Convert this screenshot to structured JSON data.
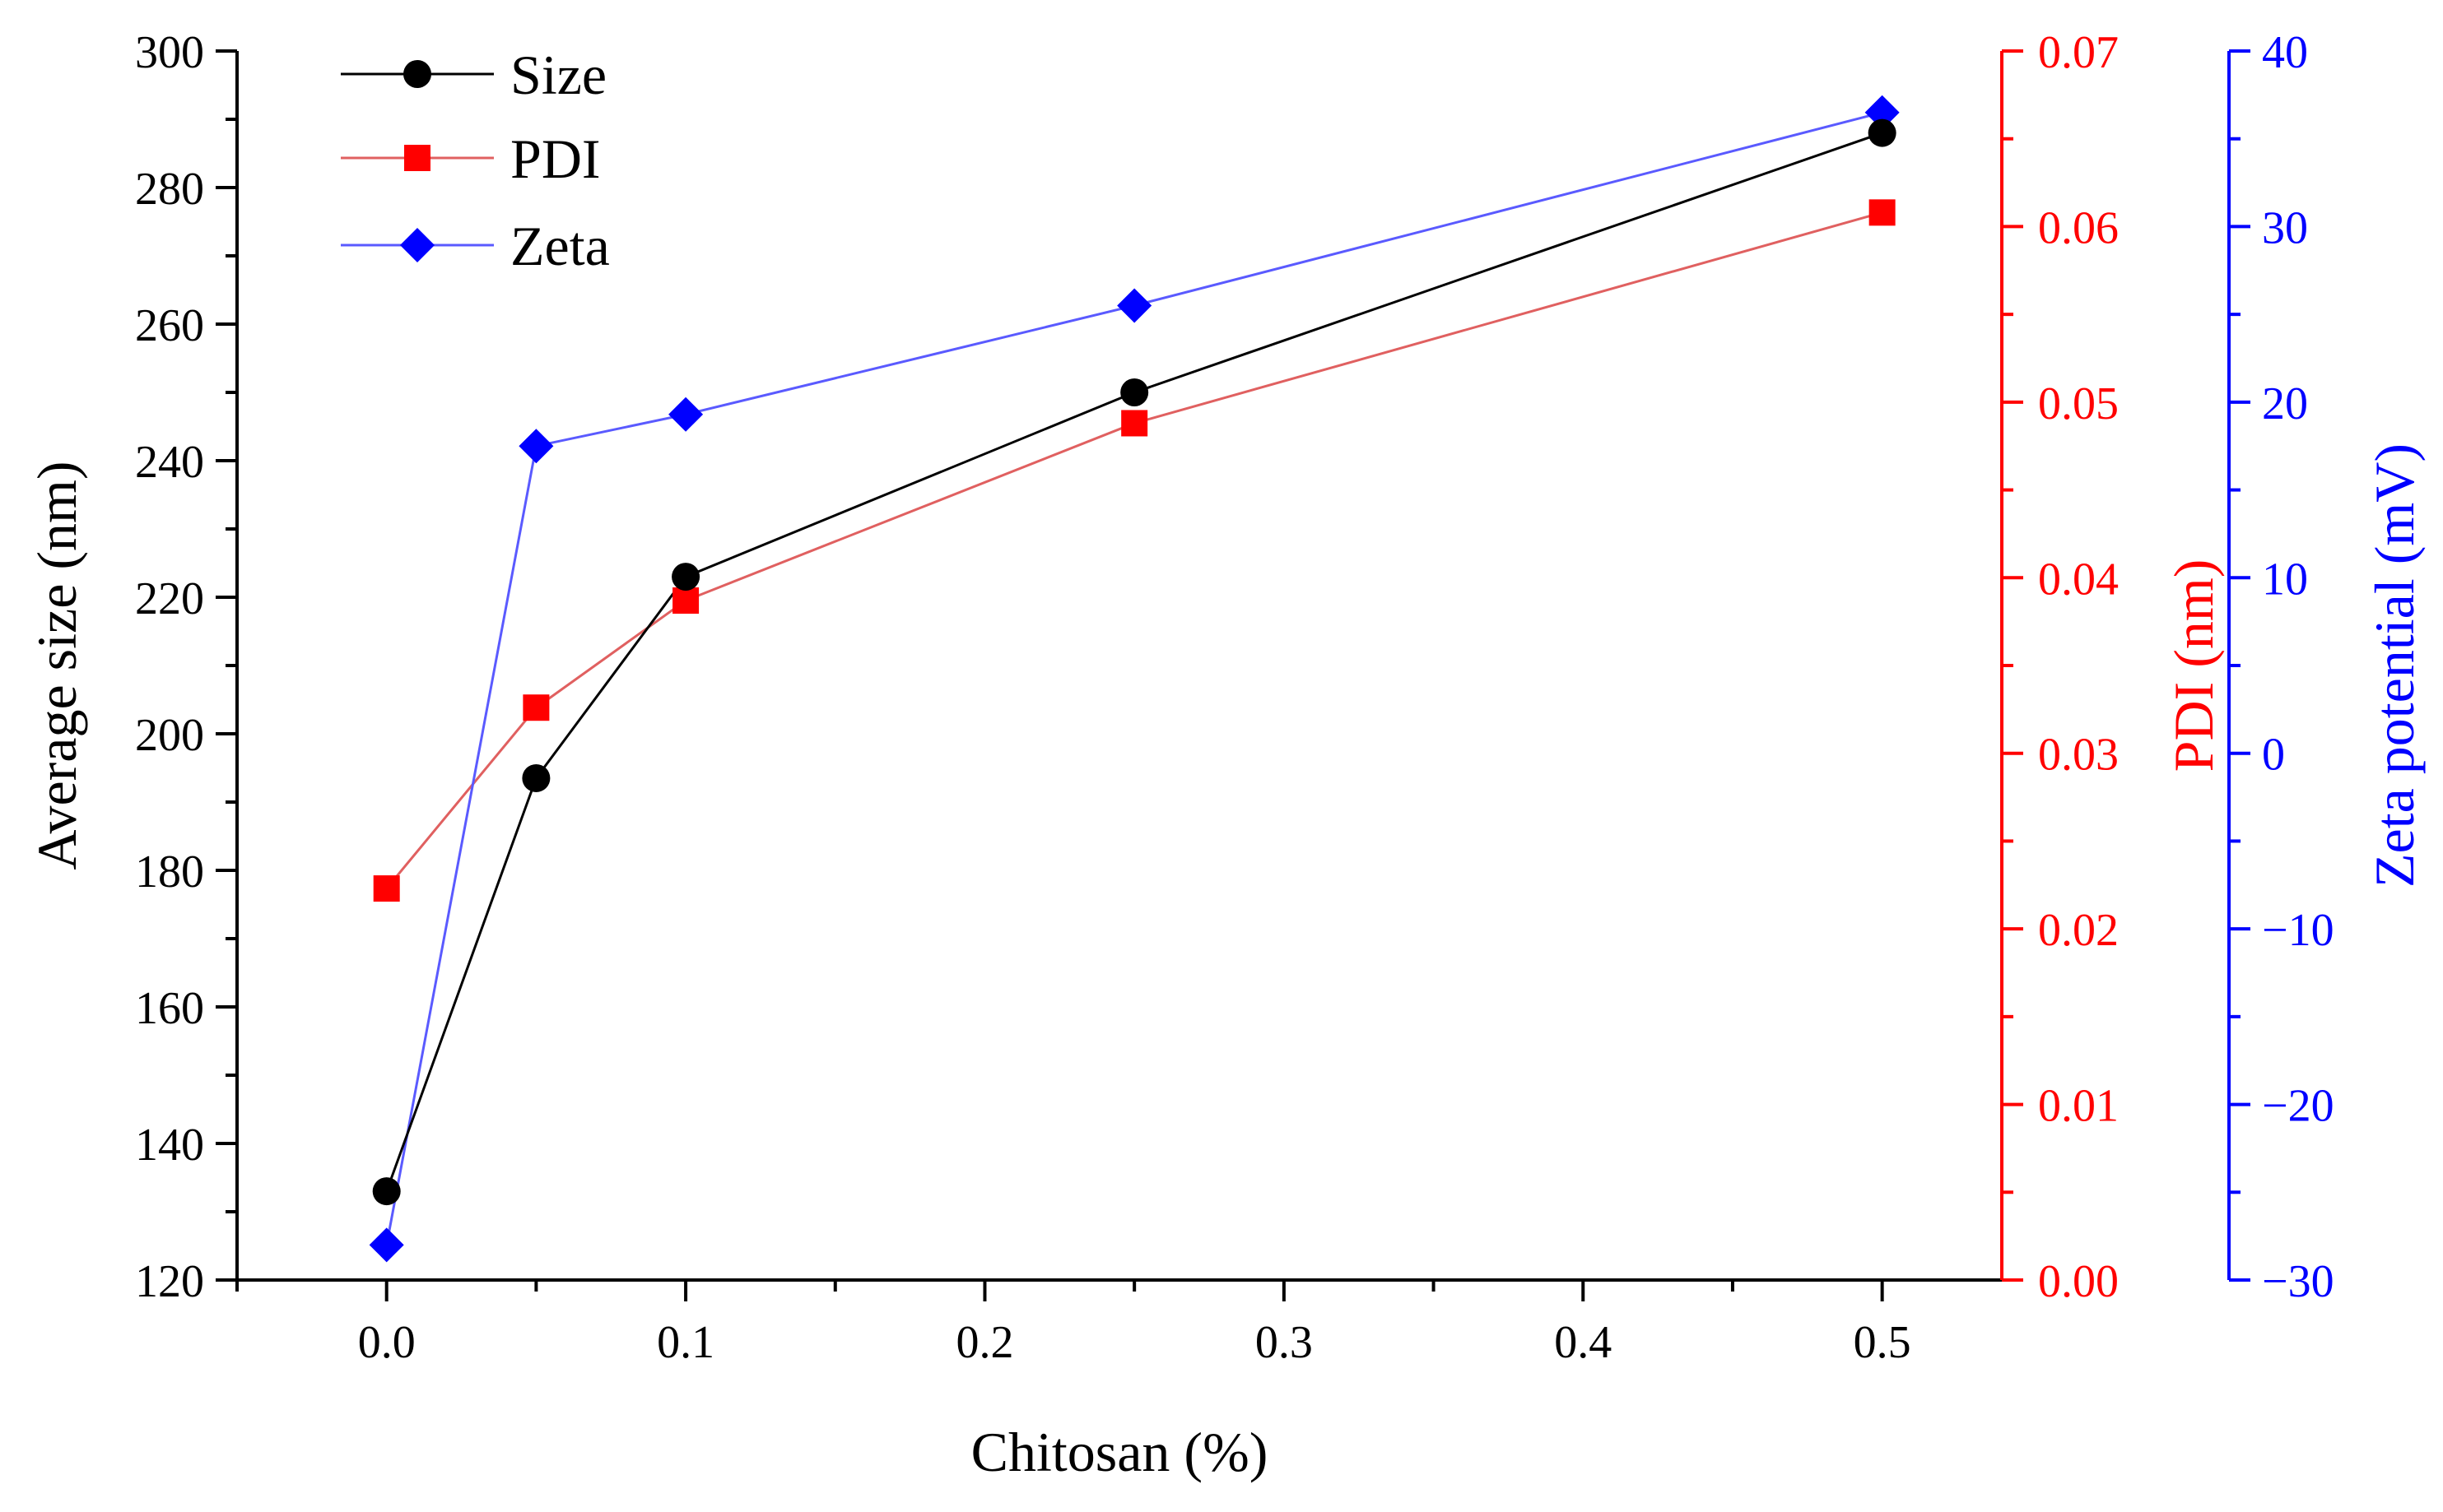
{
  "chart_data": {
    "type": "line",
    "x": [
      0.0,
      0.05,
      0.1,
      0.25,
      0.5
    ],
    "xlabel": "Chitosan (%)",
    "xlim": [
      -0.05,
      0.54
    ],
    "x_ticks": [
      0.0,
      0.1,
      0.2,
      0.3,
      0.4,
      0.5
    ],
    "x_tick_labels": [
      "0.0",
      "0.1",
      "0.2",
      "0.3",
      "0.4",
      "0.5"
    ],
    "axes": {
      "left": {
        "label": "Average size (nm)",
        "color": "#000000",
        "ylim": [
          120,
          300
        ],
        "ticks": [
          120,
          140,
          160,
          180,
          200,
          220,
          240,
          260,
          280,
          300
        ],
        "tick_labels": [
          "120",
          "140",
          "160",
          "180",
          "200",
          "220",
          "240",
          "260",
          "280",
          "300"
        ]
      },
      "right1": {
        "label": "PDI (nm)",
        "color": "#ff0000",
        "ylim": [
          0.0,
          0.07
        ],
        "ticks": [
          0.0,
          0.01,
          0.02,
          0.03,
          0.04,
          0.05,
          0.06,
          0.07
        ],
        "tick_labels": [
          "0.00",
          "0.01",
          "0.02",
          "0.03",
          "0.04",
          "0.05",
          "0.06",
          "0.07"
        ]
      },
      "right2": {
        "label": "Zeta potential (mV)",
        "color": "#0000ff",
        "ylim": [
          -30,
          40
        ],
        "ticks": [
          -30,
          -20,
          -10,
          0,
          10,
          20,
          30,
          40
        ],
        "tick_labels": [
          "−30",
          "−20",
          "−10",
          "0",
          "10",
          "20",
          "30",
          "40"
        ]
      }
    },
    "series": [
      {
        "name": "Size",
        "axis": "left",
        "marker": "circle",
        "color": "#000000",
        "values": [
          133,
          193.5,
          223,
          250,
          288
        ]
      },
      {
        "name": "PDI",
        "axis": "right1",
        "marker": "square",
        "color": "#ff0000",
        "line_color": "#e06060",
        "values": [
          0.0223,
          0.0326,
          0.0387,
          0.0488,
          0.0608
        ]
      },
      {
        "name": "Zeta",
        "axis": "right2",
        "marker": "diamond",
        "color": "#0000ff",
        "line_color": "#5a5aff",
        "values": [
          -28,
          17.5,
          19.3,
          25.5,
          36.5
        ]
      }
    ],
    "legend_position": "top-left",
    "grid": false
  }
}
